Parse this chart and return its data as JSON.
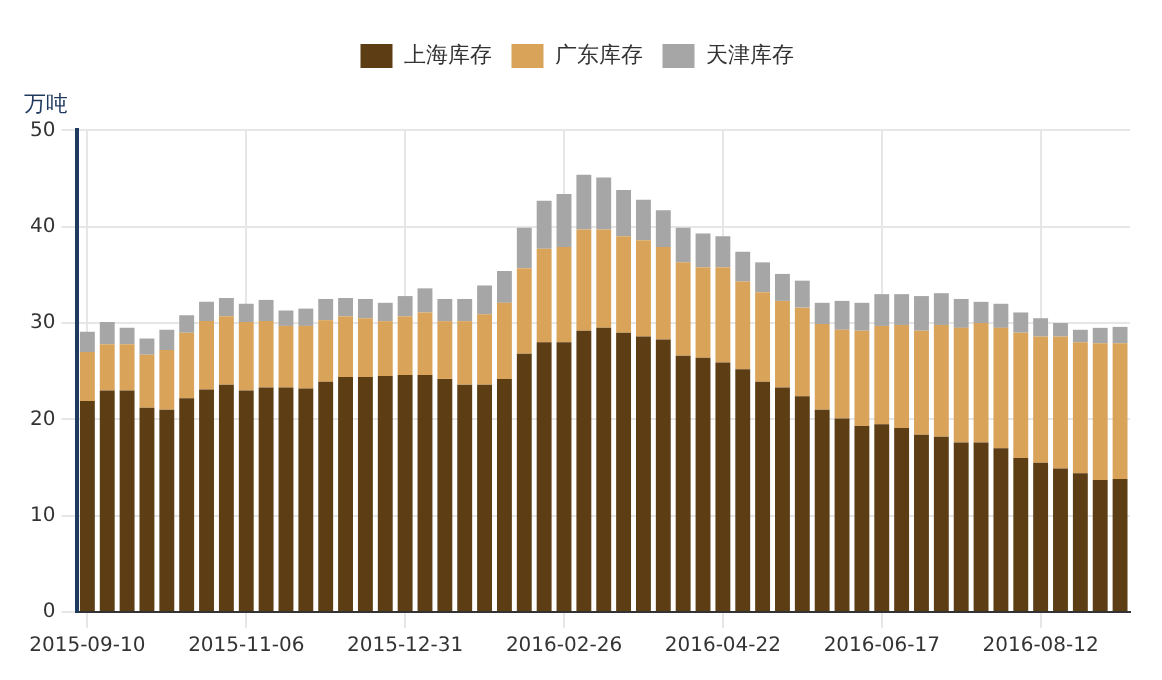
{
  "chart_data": {
    "type": "bar",
    "stacked": true,
    "ylabel": "万吨",
    "categories": [
      "2015-09-10",
      null,
      null,
      null,
      null,
      null,
      null,
      null,
      "2015-11-06",
      null,
      null,
      null,
      null,
      null,
      null,
      null,
      "2015-12-31",
      null,
      null,
      null,
      null,
      null,
      null,
      null,
      "2016-02-26",
      null,
      null,
      null,
      null,
      null,
      null,
      null,
      "2016-04-22",
      null,
      null,
      null,
      null,
      null,
      null,
      null,
      "2016-06-17",
      null,
      null,
      null,
      null,
      null,
      null,
      null,
      "2016-08-12",
      null,
      null,
      null,
      null
    ],
    "series": [
      {
        "name": "上海库存",
        "color": "#5c3d14",
        "values": [
          21.9,
          23.0,
          23.0,
          21.2,
          21.0,
          22.2,
          23.1,
          23.6,
          23.0,
          23.3,
          23.3,
          23.2,
          23.9,
          24.4,
          24.4,
          24.5,
          24.6,
          24.6,
          24.2,
          23.6,
          23.6,
          24.2,
          26.8,
          28.0,
          28.0,
          29.2,
          29.5,
          29.0,
          28.6,
          28.3,
          26.6,
          26.4,
          25.9,
          25.2,
          23.9,
          23.3,
          22.4,
          21.0,
          20.1,
          19.3,
          19.5,
          19.1,
          18.4,
          18.2,
          17.6,
          17.6,
          17.0,
          16.0,
          15.5,
          14.9,
          14.4,
          13.7,
          13.8
        ]
      },
      {
        "name": "广东库存",
        "color": "#d9a35a",
        "values": [
          5.1,
          4.8,
          4.8,
          5.5,
          6.2,
          6.8,
          7.1,
          7.1,
          7.1,
          6.9,
          6.4,
          6.5,
          6.4,
          6.3,
          6.1,
          5.7,
          6.1,
          6.5,
          6.0,
          6.6,
          7.3,
          7.9,
          8.9,
          9.7,
          9.9,
          10.5,
          10.2,
          10.0,
          10.0,
          9.6,
          9.7,
          9.4,
          9.9,
          9.1,
          9.3,
          9.0,
          9.2,
          8.9,
          9.2,
          9.9,
          10.2,
          10.7,
          10.8,
          11.6,
          11.9,
          12.4,
          12.5,
          13.0,
          13.1,
          13.7,
          13.6,
          14.2,
          14.1
        ]
      },
      {
        "name": "天津库存",
        "color": "#a6a6a6",
        "values": [
          2.1,
          2.3,
          1.7,
          1.7,
          2.1,
          1.8,
          2.0,
          1.9,
          1.9,
          2.2,
          1.6,
          1.8,
          2.2,
          1.9,
          2.0,
          1.9,
          2.1,
          2.5,
          2.3,
          2.3,
          3.0,
          3.3,
          4.2,
          5.0,
          5.5,
          5.7,
          5.4,
          4.8,
          4.2,
          3.8,
          3.6,
          3.5,
          3.2,
          3.1,
          3.1,
          2.8,
          2.8,
          2.2,
          3.0,
          2.9,
          3.3,
          3.2,
          3.6,
          3.3,
          3.0,
          2.2,
          2.5,
          2.1,
          1.9,
          1.4,
          1.3,
          1.6,
          1.7
        ]
      }
    ],
    "ylim": [
      0,
      50
    ],
    "yticks": [
      0,
      10,
      20,
      30,
      40,
      50
    ],
    "grid": true,
    "legend": "top"
  }
}
